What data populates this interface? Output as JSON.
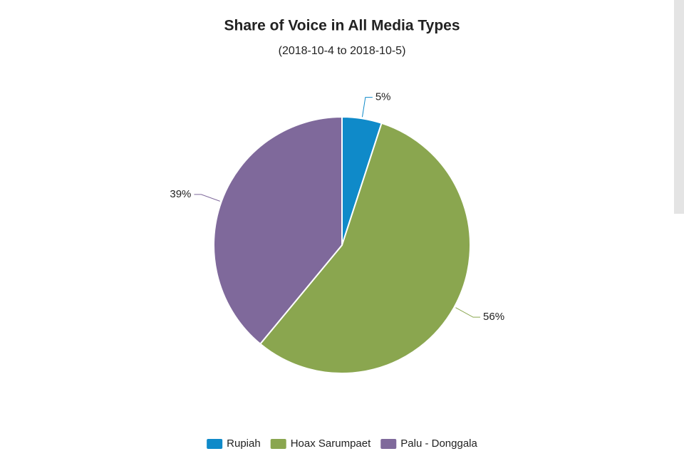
{
  "chart_data": {
    "type": "pie",
    "title": "Share of Voice in All Media Types",
    "subtitle": "(2018-10-4 to 2018-10-5)",
    "categories": [
      "Rupiah",
      "Hoax Sarumpaet",
      "Palu - Donggala"
    ],
    "values": [
      5,
      56,
      39
    ],
    "value_labels": [
      "5%",
      "56%",
      "39%"
    ],
    "colors": [
      "#0f8ac9",
      "#8aa64f",
      "#7f699b"
    ],
    "legend": "bottom"
  }
}
